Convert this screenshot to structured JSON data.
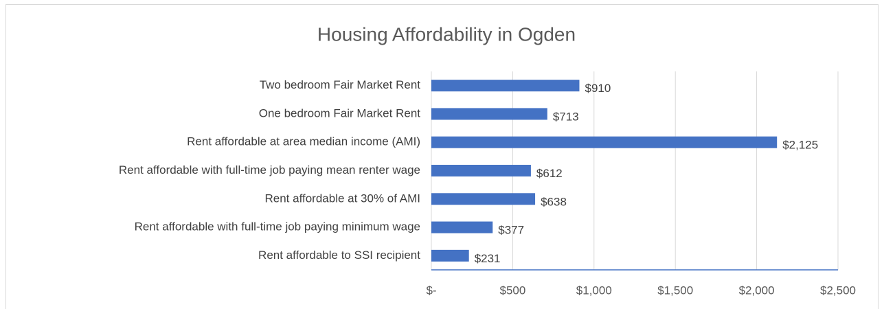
{
  "chart_data": {
    "type": "bar",
    "orientation": "horizontal",
    "title": "Housing Affordability in Ogden",
    "categories": [
      "Two bedroom Fair Market Rent",
      "One bedroom Fair Market Rent",
      "Rent affordable at area median income (AMI)",
      "Rent affordable with full-time job paying mean renter wage",
      "Rent affordable at 30% of AMI",
      "Rent affordable with full-time job paying minimum wage",
      "Rent affordable to SSI recipient"
    ],
    "values": [
      910,
      713,
      2125,
      612,
      638,
      377,
      231
    ],
    "value_labels": [
      "$910",
      "$713",
      "$2,125",
      "$612",
      "$638",
      "$377",
      "$231"
    ],
    "color": "#4472c4",
    "xlim": [
      0,
      2500
    ],
    "xticks": [
      {
        "value": 0,
        "label": "$-"
      },
      {
        "value": 500,
        "label": "$500"
      },
      {
        "value": 1000,
        "label": "$1,000"
      },
      {
        "value": 1500,
        "label": "$1,500"
      },
      {
        "value": 2000,
        "label": "$2,000"
      },
      {
        "value": 2500,
        "label": "$2,500"
      }
    ],
    "grid": true
  }
}
